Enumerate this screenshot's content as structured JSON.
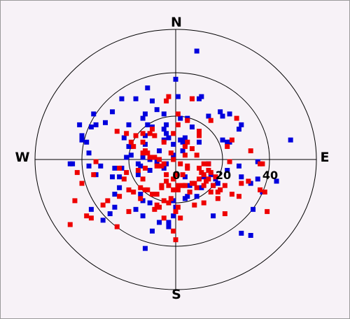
{
  "chart_data": {
    "type": "scatter",
    "subtype": "polar",
    "directions": {
      "north": "N",
      "south": "S",
      "east": "E",
      "west": "W"
    },
    "radial_ticks": [
      "0",
      "20",
      "40"
    ],
    "rings": [
      20,
      40,
      60
    ],
    "rmax": 60,
    "grid": true,
    "series": [
      {
        "color": "#0000dd",
        "points": [
          [
            9,
            50
          ],
          [
            0,
            37
          ],
          [
            11,
            29
          ],
          [
            10,
            28
          ],
          [
            1,
            29
          ],
          [
            -10,
            27
          ],
          [
            -12,
            33
          ],
          [
            -17,
            28
          ],
          [
            -23,
            28
          ],
          [
            -27,
            22
          ],
          [
            -30,
            17
          ],
          [
            -36,
            15
          ],
          [
            -35,
            21
          ],
          [
            -40,
            11
          ],
          [
            -20,
            16
          ],
          [
            -8,
            23
          ],
          [
            -13,
            21
          ],
          [
            -14,
            19
          ],
          [
            -12,
            16
          ],
          [
            -10,
            15
          ],
          [
            -4,
            16
          ],
          [
            -4,
            12
          ],
          [
            -3,
            10
          ],
          [
            2,
            19
          ],
          [
            5,
            19
          ],
          [
            7,
            15
          ],
          [
            10,
            13
          ],
          [
            14,
            20
          ],
          [
            19,
            22
          ],
          [
            20,
            20
          ],
          [
            23,
            21
          ],
          [
            28,
            16
          ],
          [
            27,
            14
          ],
          [
            22,
            8
          ],
          [
            20,
            9
          ],
          [
            23,
            8
          ],
          [
            28,
            -8
          ],
          [
            32,
            -11
          ],
          [
            43,
            -10
          ],
          [
            49,
            9
          ],
          [
            37,
            -15
          ],
          [
            33,
            -23
          ],
          [
            32,
            -35
          ],
          [
            28,
            -34
          ],
          [
            16,
            -26
          ],
          [
            11,
            -13
          ],
          [
            4,
            -18
          ],
          [
            0,
            -22
          ],
          [
            -3,
            -31
          ],
          [
            -10,
            -33
          ],
          [
            -14,
            -26
          ],
          [
            -17,
            -23
          ],
          [
            -26,
            -22
          ],
          [
            -31,
            -28
          ],
          [
            -26,
            -16
          ],
          [
            -24,
            -8
          ],
          [
            -23,
            -4
          ],
          [
            -16,
            -2
          ],
          [
            -7,
            4
          ],
          [
            2,
            9
          ],
          [
            3,
            8
          ],
          [
            4,
            10
          ],
          [
            -1,
            2
          ],
          [
            -5,
            9
          ],
          [
            -13,
            7
          ],
          [
            -19,
            6
          ],
          [
            -19,
            2
          ],
          [
            -21,
            1
          ],
          [
            -26,
            -4
          ],
          [
            -34,
            -7
          ],
          [
            -37,
            3
          ],
          [
            -44,
            -2
          ],
          [
            -32,
            -3
          ],
          [
            -27,
            -8
          ],
          [
            -24,
            -13
          ],
          [
            -15,
            -16
          ],
          [
            -14,
            -19
          ],
          [
            -3,
            -29
          ],
          [
            -1,
            -26
          ],
          [
            5,
            -17
          ],
          [
            9,
            -17
          ],
          [
            12,
            -8
          ],
          [
            16,
            -12
          ],
          [
            18,
            -11
          ],
          [
            22,
            -5
          ],
          [
            6,
            -12
          ],
          [
            7,
            -11
          ],
          [
            6,
            -15
          ],
          [
            -8,
            -1
          ],
          [
            -11,
            -5
          ],
          [
            -14,
            1
          ],
          [
            -15,
            -3
          ],
          [
            -16,
            -7
          ],
          [
            -22,
            10
          ],
          [
            -37,
            -3
          ],
          [
            -41,
            16
          ],
          [
            -40,
            9
          ],
          [
            -45,
            -2
          ],
          [
            -28,
            -25
          ],
          [
            -36,
            -23
          ],
          [
            -13,
            -41
          ],
          [
            -7,
            -29
          ],
          [
            -1,
            -19
          ],
          [
            15,
            -7
          ],
          [
            17,
            -9
          ],
          [
            27,
            -3
          ],
          [
            35,
            -9
          ],
          [
            35,
            -1
          ],
          [
            10,
            8
          ],
          [
            -1,
            7
          ],
          [
            3,
            4
          ],
          [
            4,
            -8
          ],
          [
            -5,
            14
          ],
          [
            -11,
            -20
          ],
          [
            -13,
            11
          ],
          [
            -20,
            6
          ],
          [
            -34,
            16
          ],
          [
            -38,
            8
          ],
          [
            -4,
            -2
          ],
          [
            -5,
            -4
          ],
          [
            -11,
            0
          ],
          [
            14,
            -2
          ],
          [
            4,
            7
          ],
          [
            -10,
            15
          ],
          [
            -5,
            21
          ]
        ]
      },
      {
        "color": "#ee0000",
        "points": [
          [
            -3,
            29
          ],
          [
            7,
            28
          ],
          [
            7,
            28
          ],
          [
            -4,
            27
          ],
          [
            1,
            21
          ],
          [
            1,
            16
          ],
          [
            10,
            11
          ],
          [
            15,
            18
          ],
          [
            26,
            19
          ],
          [
            24,
            9
          ],
          [
            22,
            6
          ],
          [
            23,
            -1
          ],
          [
            32,
            4
          ],
          [
            36,
            -2
          ],
          [
            37,
            -2
          ],
          [
            31,
            -10
          ],
          [
            36,
            -14
          ],
          [
            39,
            -24
          ],
          [
            38,
            -15
          ],
          [
            28,
            -11
          ],
          [
            27,
            -17
          ],
          [
            18,
            -15
          ],
          [
            16,
            -12
          ],
          [
            12,
            -12
          ],
          [
            13,
            -10
          ],
          [
            8,
            -11
          ],
          [
            14,
            -5
          ],
          [
            10,
            -4
          ],
          [
            12,
            -2
          ],
          [
            9,
            2
          ],
          [
            4,
            2
          ],
          [
            7,
            5
          ],
          [
            5,
            8
          ],
          [
            10,
            13
          ],
          [
            5,
            18
          ],
          [
            -1,
            12
          ],
          [
            -5,
            8
          ],
          [
            -9,
            11
          ],
          [
            -10,
            14
          ],
          [
            -11,
            12
          ],
          [
            -14,
            12
          ],
          [
            -17,
            11
          ],
          [
            -18,
            6
          ],
          [
            -19,
            8
          ],
          [
            -13,
            4
          ],
          [
            -14,
            8
          ],
          [
            -14,
            3
          ],
          [
            -12,
            3
          ],
          [
            -11,
            1
          ],
          [
            -9,
            1
          ],
          [
            -7,
            0
          ],
          [
            -5,
            -2
          ],
          [
            -6,
            -3
          ],
          [
            -8,
            -3
          ],
          [
            -13,
            -4
          ],
          [
            -16,
            -5
          ],
          [
            -21,
            -6
          ],
          [
            -24,
            -4
          ],
          [
            -14,
            -9
          ],
          [
            -15,
            -13
          ],
          [
            -15,
            -18
          ],
          [
            -13,
            -14
          ],
          [
            -10,
            -16
          ],
          [
            -8,
            -16
          ],
          [
            -6,
            -13
          ],
          [
            -8,
            -21
          ],
          [
            -7,
            -22
          ],
          [
            -5,
            -19
          ],
          [
            -3,
            -12
          ],
          [
            -2,
            -18
          ],
          [
            -1,
            -14
          ],
          [
            1,
            -14
          ],
          [
            1,
            -12
          ],
          [
            3,
            -12
          ],
          [
            4,
            -12
          ],
          [
            7,
            -11
          ],
          [
            9,
            -13
          ],
          [
            10,
            -9
          ],
          [
            11,
            -6
          ],
          [
            12,
            -7
          ],
          [
            15,
            -6
          ],
          [
            14,
            -9
          ],
          [
            17,
            -8
          ],
          [
            21,
            -12
          ],
          [
            19,
            -14
          ],
          [
            18,
            -18
          ],
          [
            21,
            -25
          ],
          [
            12,
            -20
          ],
          [
            6,
            -15
          ],
          [
            1,
            -22
          ],
          [
            0,
            -24
          ],
          [
            0,
            -37
          ],
          [
            -1,
            -33
          ],
          [
            2,
            -27
          ],
          [
            -3,
            -20
          ],
          [
            -5,
            -27
          ],
          [
            -9,
            -23
          ],
          [
            -12,
            -14
          ],
          [
            -18,
            -15
          ],
          [
            -24,
            -17
          ],
          [
            -20,
            -24
          ],
          [
            -25,
            -31
          ],
          [
            -31,
            -21
          ],
          [
            -36,
            -27
          ],
          [
            -29,
            -19
          ],
          [
            -35,
            -7
          ],
          [
            -42,
            -6
          ],
          [
            -43,
            -19
          ],
          [
            -38,
            -26
          ],
          [
            -45,
            -30
          ],
          [
            -40,
            -11
          ],
          [
            -34,
            -1
          ],
          [
            -21,
            12
          ],
          [
            -25,
            13
          ],
          [
            -22,
            -9
          ],
          [
            -20,
            -14
          ],
          [
            -6,
            -12
          ],
          [
            -4,
            -7
          ],
          [
            0,
            -7
          ],
          [
            5,
            -4
          ],
          [
            -1,
            0
          ],
          [
            -2,
            3
          ],
          [
            2,
            -2
          ],
          [
            5,
            -3
          ],
          [
            3,
            -7
          ],
          [
            -4,
            -10
          ],
          [
            -1,
            -9
          ],
          [
            8,
            -21
          ],
          [
            14,
            -2
          ],
          [
            15,
            -15
          ],
          [
            24,
            -16
          ],
          [
            4,
            6
          ]
        ]
      }
    ]
  }
}
